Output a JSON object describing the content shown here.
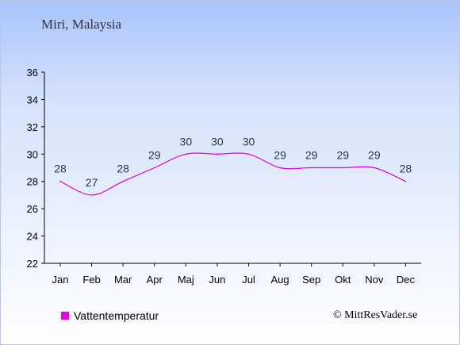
{
  "header": {
    "location": "Miri, Malaysia"
  },
  "legend": {
    "label": "Vattentemperatur",
    "color": "#e000e0"
  },
  "footer": {
    "credit": "© MittResVader.se"
  },
  "chart_data": {
    "type": "line",
    "title": "Miri, Malaysia",
    "xlabel": "",
    "ylabel": "",
    "categories": [
      "Jan",
      "Feb",
      "Mar",
      "Apr",
      "Maj",
      "Jun",
      "Jul",
      "Aug",
      "Sep",
      "Okt",
      "Nov",
      "Dec"
    ],
    "series": [
      {
        "name": "Vattentemperatur",
        "color": "#e000e0",
        "values": [
          28,
          27,
          28,
          29,
          30,
          30,
          30,
          29,
          29,
          29,
          29,
          28
        ]
      }
    ],
    "ylim": [
      22,
      36
    ],
    "yticks": [
      22,
      24,
      26,
      28,
      30,
      32,
      34,
      36
    ],
    "grid": false,
    "legend": "bottom-left"
  }
}
